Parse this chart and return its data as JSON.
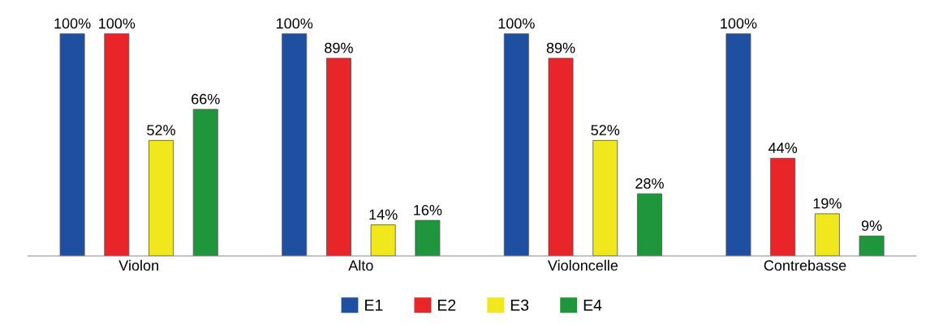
{
  "chart_data": {
    "type": "bar",
    "categories": [
      "Violon",
      "Alto",
      "Violoncelle",
      "Contrebasse"
    ],
    "series": [
      {
        "name": "E1",
        "color": "#1f4fa0",
        "values": [
          100,
          100,
          100,
          100
        ],
        "value_labels": [
          "100%",
          "100%",
          "100%",
          "100%"
        ]
      },
      {
        "name": "E2",
        "color": "#e8262a",
        "values": [
          100,
          89,
          89,
          44
        ],
        "value_labels": [
          "100%",
          "89%",
          "89%",
          "44%"
        ]
      },
      {
        "name": "E3",
        "color": "#f0e81c",
        "values": [
          52,
          14,
          52,
          19
        ],
        "value_labels": [
          "52%",
          "14%",
          "52%",
          "19%"
        ]
      },
      {
        "name": "E4",
        "color": "#1f963c",
        "values": [
          66,
          16,
          28,
          9
        ],
        "value_labels": [
          "66%",
          "16%",
          "28%",
          "9%"
        ]
      }
    ],
    "legend": "bottom",
    "grid": false
  }
}
